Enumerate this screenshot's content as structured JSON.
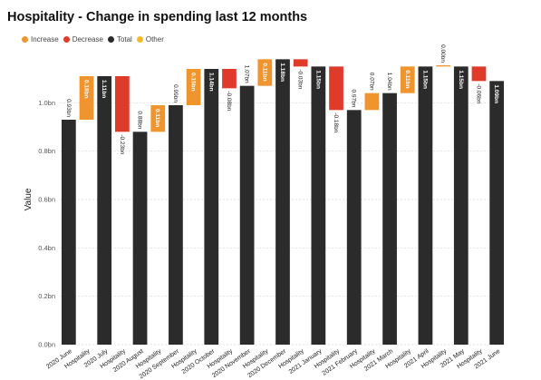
{
  "title": "Hospitality - Change in spending last 12 months",
  "legend": [
    {
      "label": "Increase",
      "color": "#f0952e"
    },
    {
      "label": "Decrease",
      "color": "#e03a2b"
    },
    {
      "label": "Total",
      "color": "#2b2b2b"
    },
    {
      "label": "Other",
      "color": "#f2b92b"
    }
  ],
  "chart_data": {
    "type": "waterfall",
    "title": "Hospitality - Change in spending last 12 months",
    "ylabel": "Value",
    "ylim": [
      0,
      1.2
    ],
    "yticks": [
      0.0,
      0.2,
      0.4,
      0.6,
      0.8,
      1.0
    ],
    "ytick_labels": [
      "0.0bn",
      "0.2bn",
      "0.4bn",
      "0.6bn",
      "0.8bn",
      "1.0bn"
    ],
    "grid": true,
    "legend_position": "top-left",
    "colors": {
      "increase": "#f0952e",
      "decrease": "#e03a2b",
      "total": "#2b2b2b"
    },
    "bars": [
      {
        "category": "2020 June",
        "kind": "total",
        "start": 0,
        "end": 0.93,
        "label": "0.93bn"
      },
      {
        "category": "Hospitality",
        "kind": "increase",
        "start": 0.93,
        "end": 1.11,
        "label": "0.18bn"
      },
      {
        "category": "2020 July",
        "kind": "total",
        "start": 0,
        "end": 1.11,
        "label": "1.11bn"
      },
      {
        "category": "Hospitality",
        "kind": "decrease",
        "start": 1.11,
        "end": 0.88,
        "label": "-0.23bn"
      },
      {
        "category": "2020 August",
        "kind": "total",
        "start": 0,
        "end": 0.88,
        "label": "0.88bn"
      },
      {
        "category": "Hospitality",
        "kind": "increase",
        "start": 0.88,
        "end": 0.99,
        "label": "0.11bn"
      },
      {
        "category": "2020 September",
        "kind": "total",
        "start": 0,
        "end": 0.99,
        "label": "0.99bn"
      },
      {
        "category": "Hospitality",
        "kind": "increase",
        "start": 0.99,
        "end": 1.14,
        "label": "0.15bn"
      },
      {
        "category": "2020 October",
        "kind": "total",
        "start": 0,
        "end": 1.14,
        "label": "1.14bn"
      },
      {
        "category": "Hospitality",
        "kind": "decrease",
        "start": 1.14,
        "end": 1.06,
        "label": "-0.08bn"
      },
      {
        "category": "2020 November",
        "kind": "total",
        "start": 0,
        "end": 1.07,
        "label": "1.07bn"
      },
      {
        "category": "Hospitality",
        "kind": "increase",
        "start": 1.07,
        "end": 1.18,
        "label": "0.11bn"
      },
      {
        "category": "2020 December",
        "kind": "total",
        "start": 0,
        "end": 1.18,
        "label": "1.18bn"
      },
      {
        "category": "Hospitality",
        "kind": "decrease",
        "start": 1.18,
        "end": 1.15,
        "label": "-0.03bn"
      },
      {
        "category": "2021 January",
        "kind": "total",
        "start": 0,
        "end": 1.15,
        "label": "1.15bn"
      },
      {
        "category": "Hospitality",
        "kind": "decrease",
        "start": 1.15,
        "end": 0.97,
        "label": "-0.18bn"
      },
      {
        "category": "2021 February",
        "kind": "total",
        "start": 0,
        "end": 0.97,
        "label": "0.97bn"
      },
      {
        "category": "Hospitality",
        "kind": "increase",
        "start": 0.97,
        "end": 1.04,
        "label": "0.07bn"
      },
      {
        "category": "2021 March",
        "kind": "total",
        "start": 0,
        "end": 1.04,
        "label": "1.04bn"
      },
      {
        "category": "Hospitality",
        "kind": "increase",
        "start": 1.04,
        "end": 1.15,
        "label": "0.11bn"
      },
      {
        "category": "2021 April",
        "kind": "total",
        "start": 0,
        "end": 1.15,
        "label": "1.15bn"
      },
      {
        "category": "Hospitality",
        "kind": "increase",
        "start": 1.15,
        "end": 1.155,
        "label": "0.00bn"
      },
      {
        "category": "2021 May",
        "kind": "total",
        "start": 0,
        "end": 1.15,
        "label": "1.15bn"
      },
      {
        "category": "Hospitality",
        "kind": "decrease",
        "start": 1.15,
        "end": 1.09,
        "label": "-0.06bn"
      },
      {
        "category": "2021 June",
        "kind": "total",
        "start": 0,
        "end": 1.09,
        "label": "1.09bn"
      }
    ]
  }
}
